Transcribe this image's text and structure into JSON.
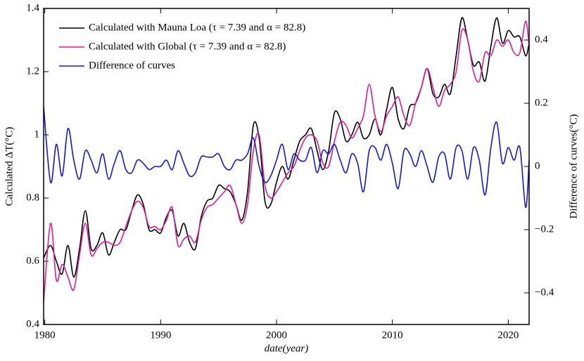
{
  "chart_data": {
    "type": "line",
    "xlabel": "date(year)",
    "ylabel": "Calculated ΔT(°C)",
    "y2label": "Difference of curves(°C)",
    "x": [
      1979.9,
      1980.5,
      1981,
      1981.5,
      1982,
      1982.5,
      1983,
      1983.5,
      1984,
      1984.5,
      1985,
      1985.5,
      1986,
      1986.5,
      1987,
      1987.5,
      1988,
      1988.5,
      1989,
      1989.5,
      1990,
      1990.5,
      1991,
      1991.5,
      1992,
      1992.5,
      1993,
      1993.5,
      1994,
      1994.5,
      1995,
      1995.5,
      1996,
      1996.5,
      1997,
      1997.5,
      1998,
      1998.5,
      1999,
      1999.5,
      2000,
      2000.5,
      2001,
      2001.5,
      2002,
      2002.5,
      2003,
      2003.5,
      2004,
      2004.5,
      2005,
      2005.5,
      2006,
      2006.5,
      2007,
      2007.5,
      2008,
      2008.5,
      2009,
      2009.5,
      2010,
      2010.5,
      2011,
      2011.5,
      2012,
      2012.5,
      2013,
      2013.5,
      2014,
      2014.5,
      2015,
      2015.5,
      2016,
      2016.5,
      2017,
      2017.5,
      2018,
      2018.5,
      2019,
      2019.5,
      2020,
      2020.5,
      2021,
      2021.5,
      2021.8
    ],
    "series": [
      {
        "name": "Calculated with Mauna Loa (τ = 7.39 and α = 82.8)",
        "color": "#000000",
        "axis": "y",
        "values": [
          0.61,
          0.65,
          0.6,
          0.56,
          0.65,
          0.55,
          0.64,
          0.76,
          0.64,
          0.65,
          0.69,
          0.62,
          0.66,
          0.7,
          0.7,
          0.76,
          0.81,
          0.78,
          0.7,
          0.7,
          0.69,
          0.74,
          0.76,
          0.68,
          0.72,
          0.66,
          0.64,
          0.74,
          0.79,
          0.8,
          0.84,
          0.83,
          0.82,
          0.78,
          0.73,
          0.82,
          1.03,
          0.99,
          0.79,
          0.78,
          0.85,
          0.9,
          0.86,
          0.92,
          0.98,
          1.0,
          1.02,
          0.95,
          0.89,
          0.95,
          1.07,
          1.05,
          0.98,
          1.0,
          1.04,
          0.99,
          1.0,
          1.05,
          1.0,
          1.08,
          1.15,
          1.05,
          1.02,
          1.09,
          1.1,
          1.15,
          1.21,
          1.13,
          1.12,
          1.16,
          1.13,
          1.25,
          1.37,
          1.3,
          1.22,
          1.23,
          1.17,
          1.28,
          1.37,
          1.29,
          1.33,
          1.31,
          1.31,
          1.25,
          1.29
        ]
      },
      {
        "name": "Calculated with Global (τ = 7.39 and α = 82.8)",
        "color": "#e0199a",
        "axis": "y",
        "values": [
          0.47,
          0.72,
          0.54,
          0.59,
          0.55,
          0.51,
          0.62,
          0.72,
          0.62,
          0.64,
          0.66,
          0.66,
          0.65,
          0.66,
          0.71,
          0.76,
          0.79,
          0.77,
          0.71,
          0.71,
          0.7,
          0.73,
          0.77,
          0.65,
          0.67,
          0.68,
          0.66,
          0.73,
          0.77,
          0.78,
          0.8,
          0.82,
          0.84,
          0.78,
          0.72,
          0.78,
          0.95,
          1.0,
          0.84,
          0.8,
          0.82,
          0.85,
          0.88,
          0.9,
          0.95,
          0.99,
          1.0,
          0.98,
          0.91,
          0.9,
          0.98,
          1.04,
          1.03,
          0.99,
          1.02,
          1.06,
          1.16,
          1.06,
          1.01,
          1.06,
          1.09,
          1.12,
          1.06,
          1.03,
          1.1,
          1.15,
          1.21,
          1.15,
          1.09,
          1.14,
          1.16,
          1.2,
          1.33,
          1.3,
          1.2,
          1.17,
          1.26,
          1.25,
          1.3,
          1.28,
          1.3,
          1.26,
          1.26,
          1.36,
          1.28
        ]
      },
      {
        "name": "Difference of curves",
        "color": "#1515e0",
        "axis": "y2",
        "values": [
          0.19,
          -0.05,
          0.07,
          -0.03,
          0.12,
          0.02,
          -0.04,
          0.05,
          0.02,
          -0.02,
          0.04,
          -0.04,
          0.01,
          0.05,
          -0.01,
          -0.02,
          0.02,
          0.01,
          -0.01,
          0.0,
          0.0,
          0.02,
          -0.01,
          0.05,
          0.01,
          -0.03,
          -0.02,
          0.03,
          0.03,
          0.03,
          0.04,
          0.0,
          -0.01,
          0.02,
          0.02,
          0.04,
          0.09,
          0.0,
          -0.05,
          -0.03,
          0.02,
          0.07,
          -0.01,
          0.04,
          0.02,
          0.02,
          0.06,
          -0.02,
          0.05,
          0.04,
          0.07,
          0.02,
          -0.02,
          0.04,
          0.01,
          -0.08,
          0.05,
          0.06,
          0.02,
          0.07,
          0.01,
          -0.07,
          0.05,
          0.04,
          0.0,
          0.05,
          0.0,
          -0.05,
          0.03,
          0.04,
          -0.04,
          0.06,
          0.05,
          -0.04,
          0.06,
          0.02,
          -0.09,
          0.06,
          0.14,
          0.01,
          0.06,
          0.02,
          0.06,
          -0.13,
          0.02
        ]
      }
    ],
    "xlim": [
      1979.9,
      2021.8
    ],
    "xticks": [
      1980,
      1990,
      2000,
      2010,
      2020
    ],
    "ylim": [
      0.4,
      1.4
    ],
    "yticks": [
      0.4,
      0.6,
      0.8,
      1,
      1.2,
      1.4
    ],
    "y2lim": [
      -0.5,
      0.5
    ],
    "y2ticks": [
      {
        "value": -0.4,
        "label": "−0.4"
      },
      {
        "value": -0.2,
        "label": "−0.2"
      },
      0,
      0.2,
      0.4
    ],
    "legend": "upper left",
    "grid": false
  }
}
